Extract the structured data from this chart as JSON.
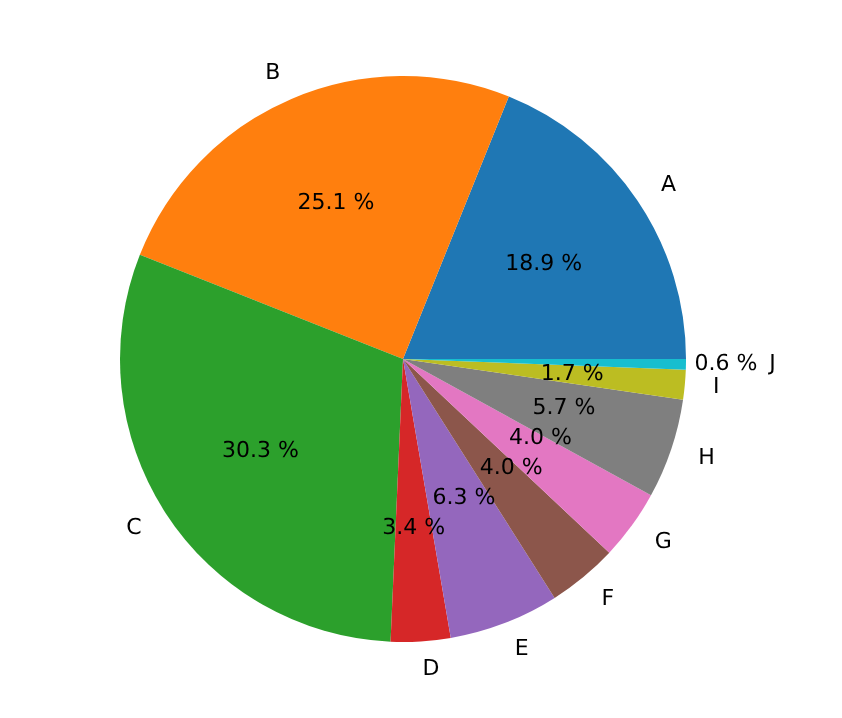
{
  "chart_data": {
    "type": "pie",
    "categories": [
      "A",
      "B",
      "C",
      "D",
      "E",
      "F",
      "G",
      "H",
      "I",
      "J"
    ],
    "values": [
      18.9,
      25.1,
      30.3,
      3.4,
      6.3,
      4.0,
      4.0,
      5.7,
      1.7,
      0.6
    ],
    "colors": [
      "#1f77b4",
      "#ff7f0e",
      "#2ca02c",
      "#d62728",
      "#9467bd",
      "#8c564b",
      "#e377c2",
      "#7f7f7f",
      "#bcbd22",
      "#17becf"
    ],
    "value_labels": [
      "18.9 %",
      "25.1 %",
      "30.3 %",
      "3.4 %",
      "6.3 %",
      "4.0 %",
      "4.0 %",
      "5.7 %",
      "1.7 %",
      "0.6 %"
    ],
    "legend": false
  }
}
